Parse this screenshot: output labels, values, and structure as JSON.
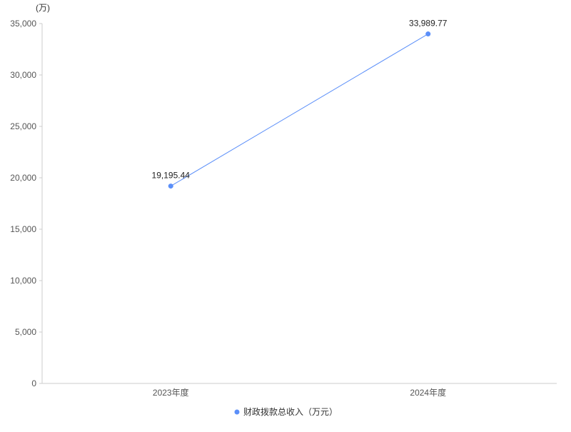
{
  "chart_data": {
    "type": "line",
    "categories": [
      "2023年度",
      "2024年度"
    ],
    "series": [
      {
        "name": "财政拨款总收入（万元）",
        "values": [
          19195.44,
          33989.77
        ],
        "labels": [
          "19,195.44",
          "33,989.77"
        ],
        "color": "#5b8ff9"
      }
    ],
    "yunit": "(万)",
    "ylim": [
      0,
      35000
    ],
    "yticks": [
      0,
      5000,
      10000,
      15000,
      20000,
      25000,
      30000,
      35000
    ],
    "ytick_labels": [
      "0",
      "5,000",
      "10,000",
      "15,000",
      "20,000",
      "25,000",
      "30,000",
      "35,000"
    ],
    "grid": false,
    "legend": "bottom"
  }
}
